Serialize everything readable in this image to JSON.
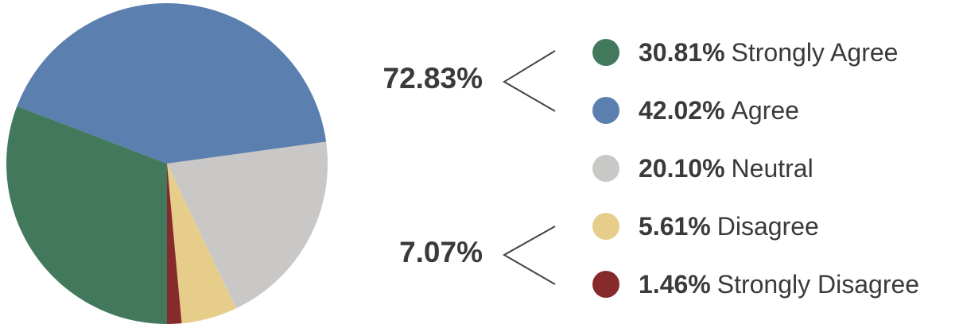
{
  "chart_data": {
    "type": "pie",
    "title": "",
    "slices": [
      {
        "pct": "30.81%",
        "label": "Strongly Agree",
        "value": 30.81,
        "color": "#42795c"
      },
      {
        "pct": "42.02%",
        "label": "Agree",
        "value": 42.02,
        "color": "#5b7fae"
      },
      {
        "pct": "20.10%",
        "label": "Neutral",
        "value": 20.1,
        "color": "#c9c8c6"
      },
      {
        "pct": "5.61%",
        "label": "Disagree",
        "value": 5.61,
        "color": "#e6ce8a"
      },
      {
        "pct": "1.46%",
        "label": "Strongly Disagree",
        "value": 1.46,
        "color": "#862a2b"
      }
    ],
    "group_totals": {
      "agree": "72.83%",
      "disagree": "7.07%"
    },
    "legend_placement": "right"
  }
}
